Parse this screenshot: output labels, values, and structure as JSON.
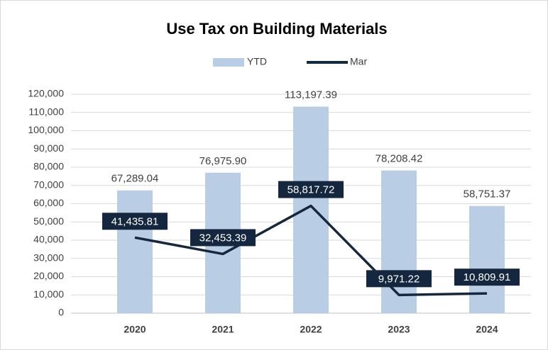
{
  "chart_data": {
    "type": "bar",
    "title": "Use Tax on Building Materials",
    "categories": [
      "2020",
      "2021",
      "2022",
      "2023",
      "2024"
    ],
    "series": [
      {
        "name": "YTD",
        "type": "bar",
        "color": "#b9cde5",
        "values": [
          67289.04,
          76975.9,
          113197.39,
          78208.42,
          58751.37
        ],
        "value_labels": [
          "67,289.04",
          "76,975.90",
          "113,197.39",
          "78,208.42",
          "58,751.37"
        ]
      },
      {
        "name": "Mar",
        "type": "line",
        "color": "#15273f",
        "values": [
          41435.81,
          32453.39,
          58817.72,
          9971.22,
          10809.91
        ],
        "value_labels": [
          "41,435.81",
          "32,453.39",
          "58,817.72",
          "9,971.22",
          "10,809.91"
        ]
      }
    ],
    "ylim": [
      0,
      120000
    ],
    "yticks": [
      0,
      {
        "value": 10000,
        "label": "10,000"
      },
      {
        "value": 20000,
        "label": "20,000"
      },
      {
        "value": 30000,
        "label": "30,000"
      },
      {
        "value": 40000,
        "label": "40,000"
      },
      {
        "value": 50000,
        "label": "50,000"
      },
      {
        "value": 60000,
        "label": "60,000"
      },
      {
        "value": 70000,
        "label": "70,000"
      },
      {
        "value": 80000,
        "label": "80,000"
      },
      {
        "value": 90000,
        "label": "90,000"
      },
      {
        "value": 100000,
        "label": "100,000"
      },
      {
        "value": 110000,
        "label": "110,000"
      },
      {
        "value": 120000,
        "label": "120,000"
      }
    ],
    "grid": true,
    "legend": "top"
  }
}
